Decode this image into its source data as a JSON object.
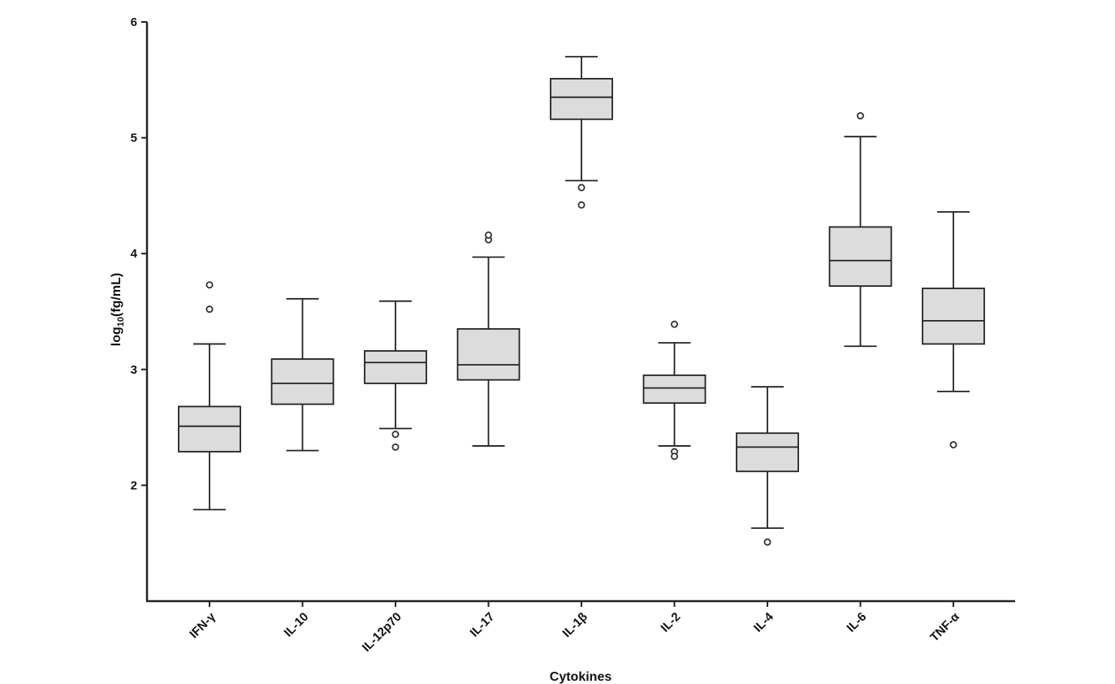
{
  "chart_data": {
    "type": "box",
    "xlabel": "Cytokines",
    "ylabel": {
      "prefix": "log",
      "subscript": "10",
      "suffix": "(fg/mL)"
    },
    "ylim": [
      1,
      6
    ],
    "yticks": [
      2,
      3,
      4,
      5,
      6
    ],
    "grid": false,
    "legend": "none",
    "box_fill": "#dcdcdc",
    "line_color": "#222222",
    "outlier_color": "#333333",
    "categories": [
      "IFN-γ",
      "IL-10",
      "IL-12p70",
      "IL-17",
      "IL-1β",
      "IL-2",
      "IL-4",
      "IL-6",
      "TNF-α"
    ],
    "boxes": [
      {
        "category": "IFN-γ",
        "whisker_low": 1.79,
        "q1": 2.29,
        "median": 2.51,
        "q3": 2.68,
        "whisker_high": 3.22,
        "outliers": [
          3.52,
          3.73
        ]
      },
      {
        "category": "IL-10",
        "whisker_low": 2.3,
        "q1": 2.7,
        "median": 2.88,
        "q3": 3.09,
        "whisker_high": 3.61,
        "outliers": []
      },
      {
        "category": "IL-12p70",
        "whisker_low": 2.49,
        "q1": 2.88,
        "median": 3.06,
        "q3": 3.16,
        "whisker_high": 3.59,
        "outliers": [
          2.44,
          2.33
        ]
      },
      {
        "category": "IL-17",
        "whisker_low": 2.34,
        "q1": 2.91,
        "median": 3.04,
        "q3": 3.35,
        "whisker_high": 3.97,
        "outliers": [
          4.12,
          4.16
        ]
      },
      {
        "category": "IL-1β",
        "whisker_low": 4.63,
        "q1": 5.16,
        "median": 5.35,
        "q3": 5.51,
        "whisker_high": 5.7,
        "outliers": [
          4.57,
          4.42
        ]
      },
      {
        "category": "IL-2",
        "whisker_low": 2.34,
        "q1": 2.71,
        "median": 2.84,
        "q3": 2.95,
        "whisker_high": 3.23,
        "outliers": [
          3.39,
          2.29,
          2.25
        ]
      },
      {
        "category": "IL-4",
        "whisker_low": 1.63,
        "q1": 2.12,
        "median": 2.33,
        "q3": 2.45,
        "whisker_high": 2.85,
        "outliers": [
          1.51
        ]
      },
      {
        "category": "IL-6",
        "whisker_low": 3.2,
        "q1": 3.72,
        "median": 3.94,
        "q3": 4.23,
        "whisker_high": 5.01,
        "outliers": [
          5.19
        ]
      },
      {
        "category": "TNF-α",
        "whisker_low": 2.81,
        "q1": 3.22,
        "median": 3.42,
        "q3": 3.7,
        "whisker_high": 4.36,
        "outliers": [
          2.35
        ]
      }
    ]
  }
}
